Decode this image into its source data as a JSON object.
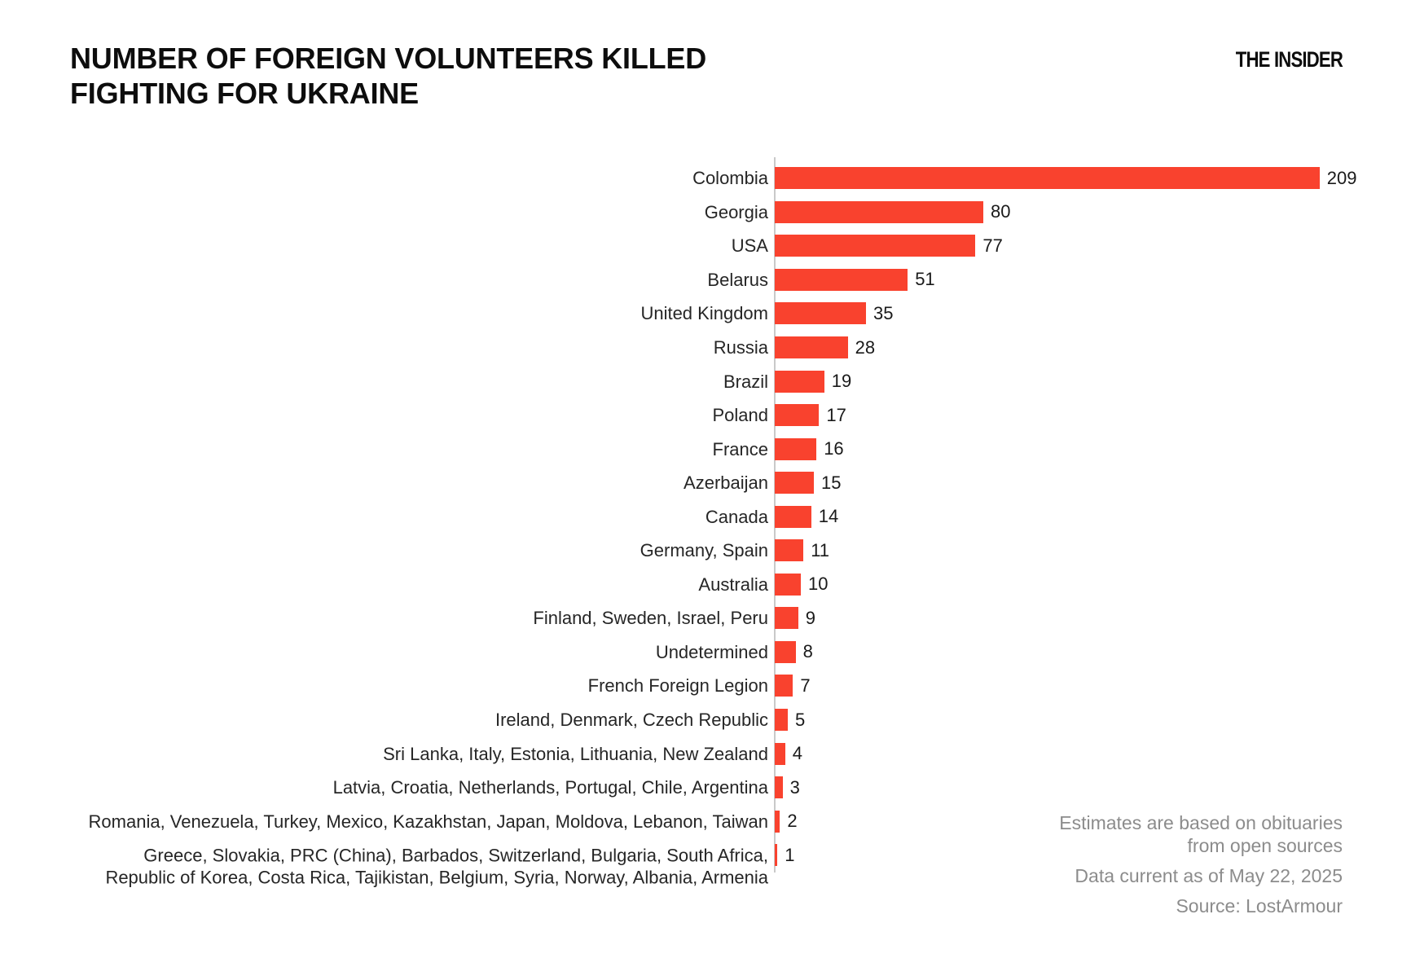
{
  "header": {
    "title": "NUMBER OF FOREIGN VOLUNTEERS KILLED\nFIGHTING FOR UKRAINE",
    "brand": "THE INSIDER"
  },
  "chart_data": {
    "type": "bar",
    "orientation": "horizontal",
    "title": "NUMBER OF FOREIGN VOLUNTEERS KILLED FIGHTING FOR UKRAINE",
    "categories": [
      "Colombia",
      "Georgia",
      "USA",
      "Belarus",
      "United Kingdom",
      "Russia",
      "Brazil",
      "Poland",
      "France",
      "Azerbaijan",
      "Canada",
      "Germany, Spain",
      "Australia",
      "Finland, Sweden, Israel, Peru",
      "Undetermined",
      "French Foreign Legion",
      "Ireland, Denmark, Czech Republic",
      "Sri Lanka, Italy, Estonia, Lithuania, New Zealand",
      "Latvia, Croatia, Netherlands, Portugal, Chile, Argentina",
      "Romania, Venezuela, Turkey, Mexico, Kazakhstan, Japan, Moldova, Lebanon, Taiwan",
      "Greece, Slovakia, PRC (China), Barbados, Switzerland, Bulgaria, South Africa,\nRepublic of Korea, Costa Rica, Tajikistan, Belgium, Syria, Norway, Albania, Armenia"
    ],
    "values": [
      209,
      80,
      77,
      51,
      35,
      28,
      19,
      17,
      16,
      15,
      14,
      11,
      10,
      9,
      8,
      7,
      5,
      4,
      3,
      2,
      1
    ],
    "value_labels_shown": true,
    "bar_color": "#f9422e",
    "axis_color": "#c9c9c9",
    "xlim": [
      0,
      230
    ],
    "grid": false,
    "legend": false
  },
  "notes": {
    "methodology": "Estimates are based on obituaries\nfrom open sources",
    "data_current": "Data current as of May 22, 2025",
    "source": "Source: LostArmour"
  }
}
